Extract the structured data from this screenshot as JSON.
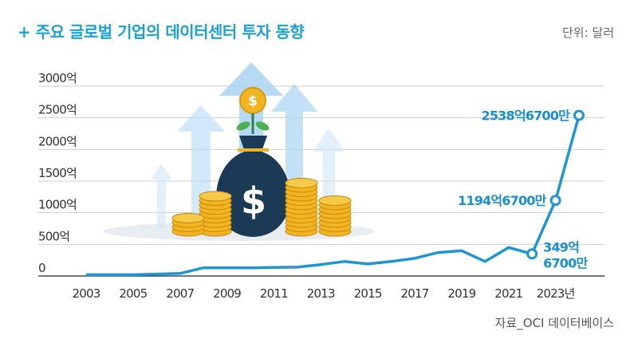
{
  "header": {
    "title": "+ 주요 글로벌 기업의 데이터센터 투자 동향",
    "unit": "단위: 달러"
  },
  "source": "자료_OCI 데이터베이스",
  "colors": {
    "accent": "#1aa2d6",
    "line": "#1f95d4",
    "gridline": "#222222",
    "coin": "#f2b521",
    "bag": "#1b3a55"
  },
  "illustration": {
    "icons": [
      "money-bag-icon",
      "coin-stack-icon",
      "up-arrow-icon",
      "dollar-coin-icon"
    ]
  },
  "chart_data": {
    "type": "line",
    "x": [
      2003,
      2004,
      2005,
      2006,
      2007,
      2008,
      2009,
      2010,
      2011,
      2012,
      2013,
      2014,
      2015,
      2016,
      2017,
      2018,
      2019,
      2020,
      2021,
      2022,
      2023,
      2024
    ],
    "series": [
      {
        "values": [
          20,
          20,
          20,
          30,
          40,
          130,
          130,
          130,
          135,
          140,
          180,
          230,
          190,
          230,
          280,
          370,
          400,
          230,
          450,
          349.67,
          1194.67,
          2538.67
        ]
      }
    ],
    "ylim": [
      0,
      3000
    ],
    "y_ticks": [
      "0",
      "500억",
      "1000억",
      "1500억",
      "2000억",
      "2500억",
      "3000억"
    ],
    "x_ticks": [
      "2003",
      "2005",
      "2007",
      "2009",
      "2011",
      "2013",
      "2015",
      "2017",
      "2019",
      "2021",
      "2023년"
    ],
    "annotations": [
      {
        "text": "2538억6700만"
      },
      {
        "text": "1194억6700만"
      },
      {
        "text": "349억"
      },
      {
        "text": "6700만"
      }
    ]
  }
}
